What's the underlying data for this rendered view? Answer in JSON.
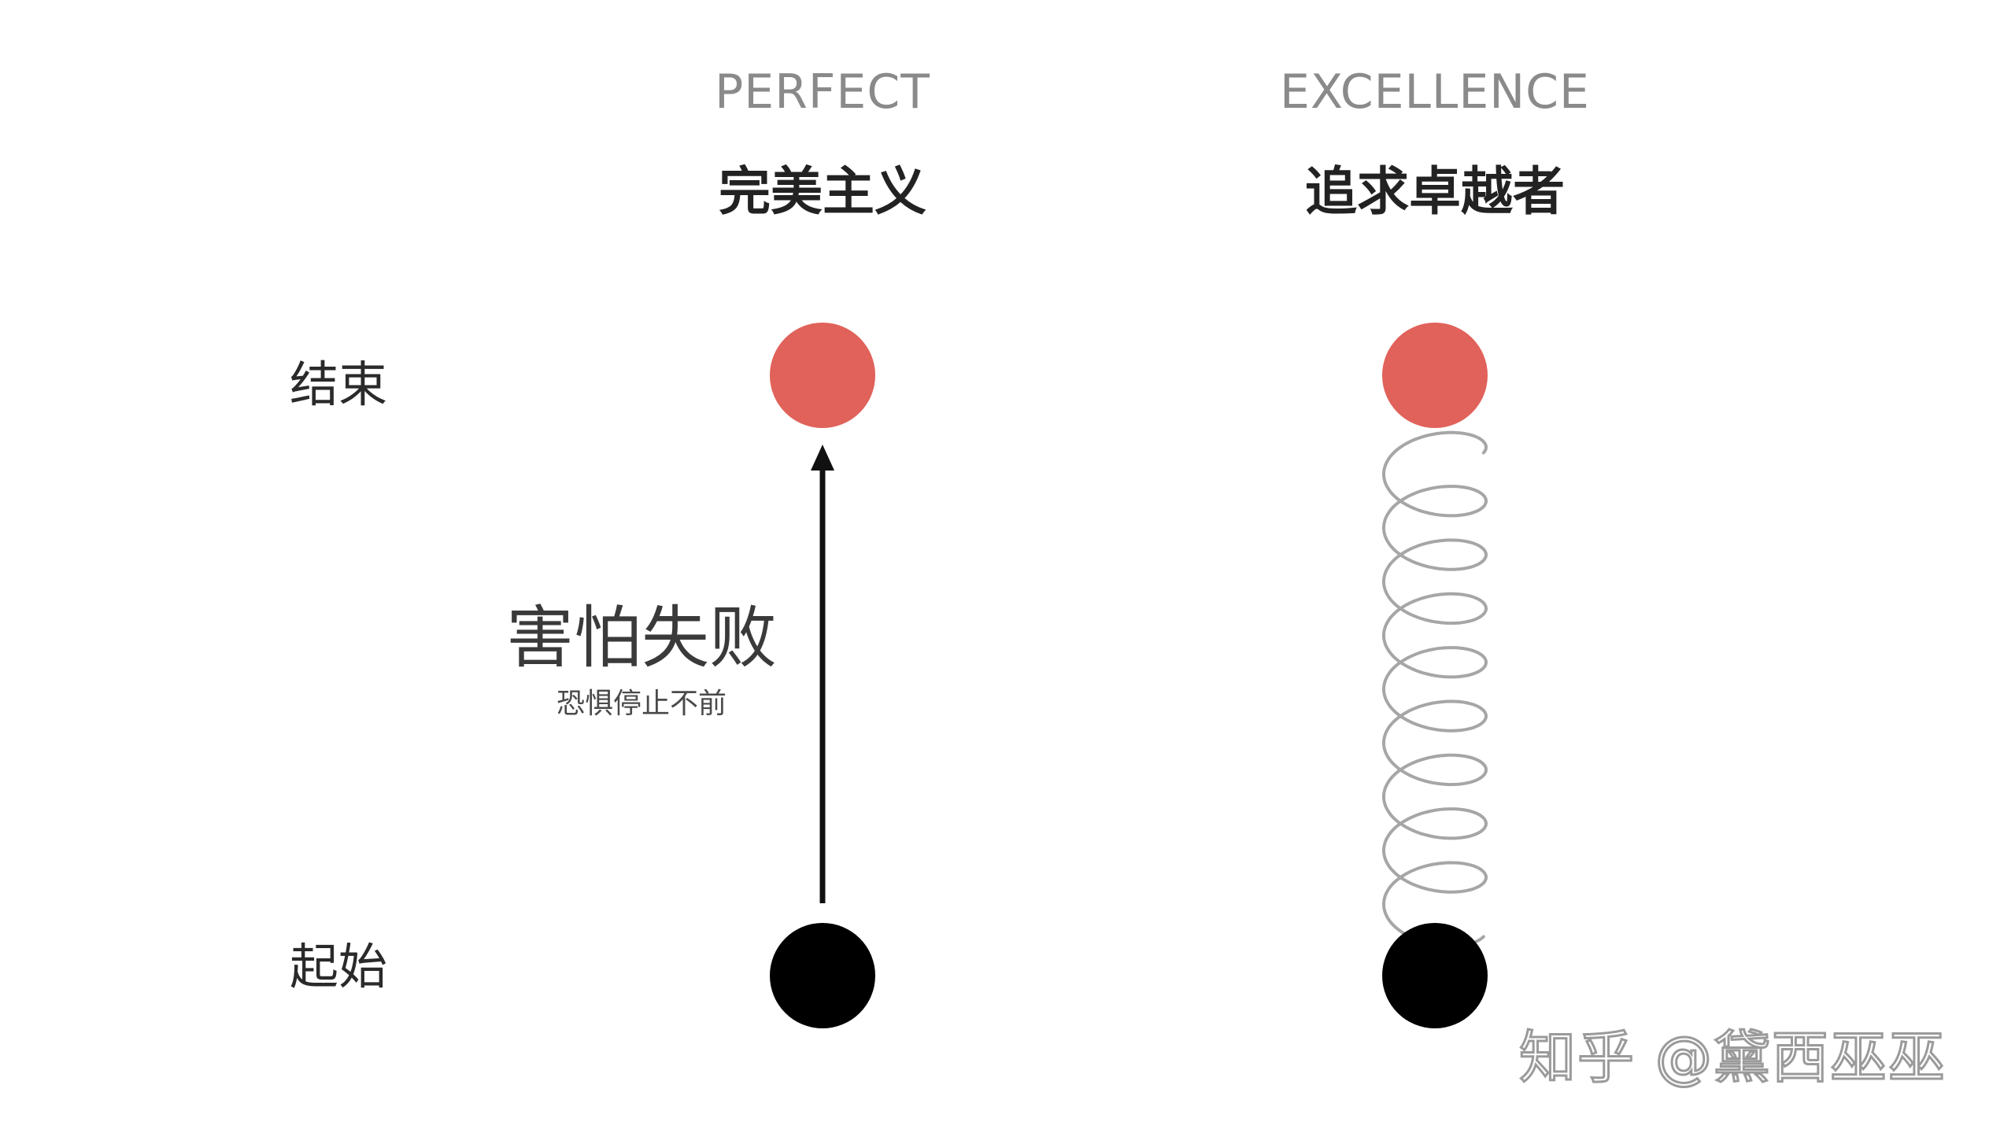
{
  "columns": [
    {
      "title_en": "PERFECT",
      "title_cn": "完美主义"
    },
    {
      "title_en": "EXCELLENCE",
      "title_cn": "追求卓越者"
    }
  ],
  "row_labels": {
    "end": "结束",
    "start": "起始"
  },
  "perfect_path": {
    "label": "害怕失败",
    "sublabel": "恐惧停止不前"
  },
  "colors": {
    "end_dot": "#e0625a",
    "start_dot": "#000000",
    "arrow": "#111111",
    "spiral": "#a6a6a6"
  },
  "watermark": "知乎 @黛西巫巫"
}
